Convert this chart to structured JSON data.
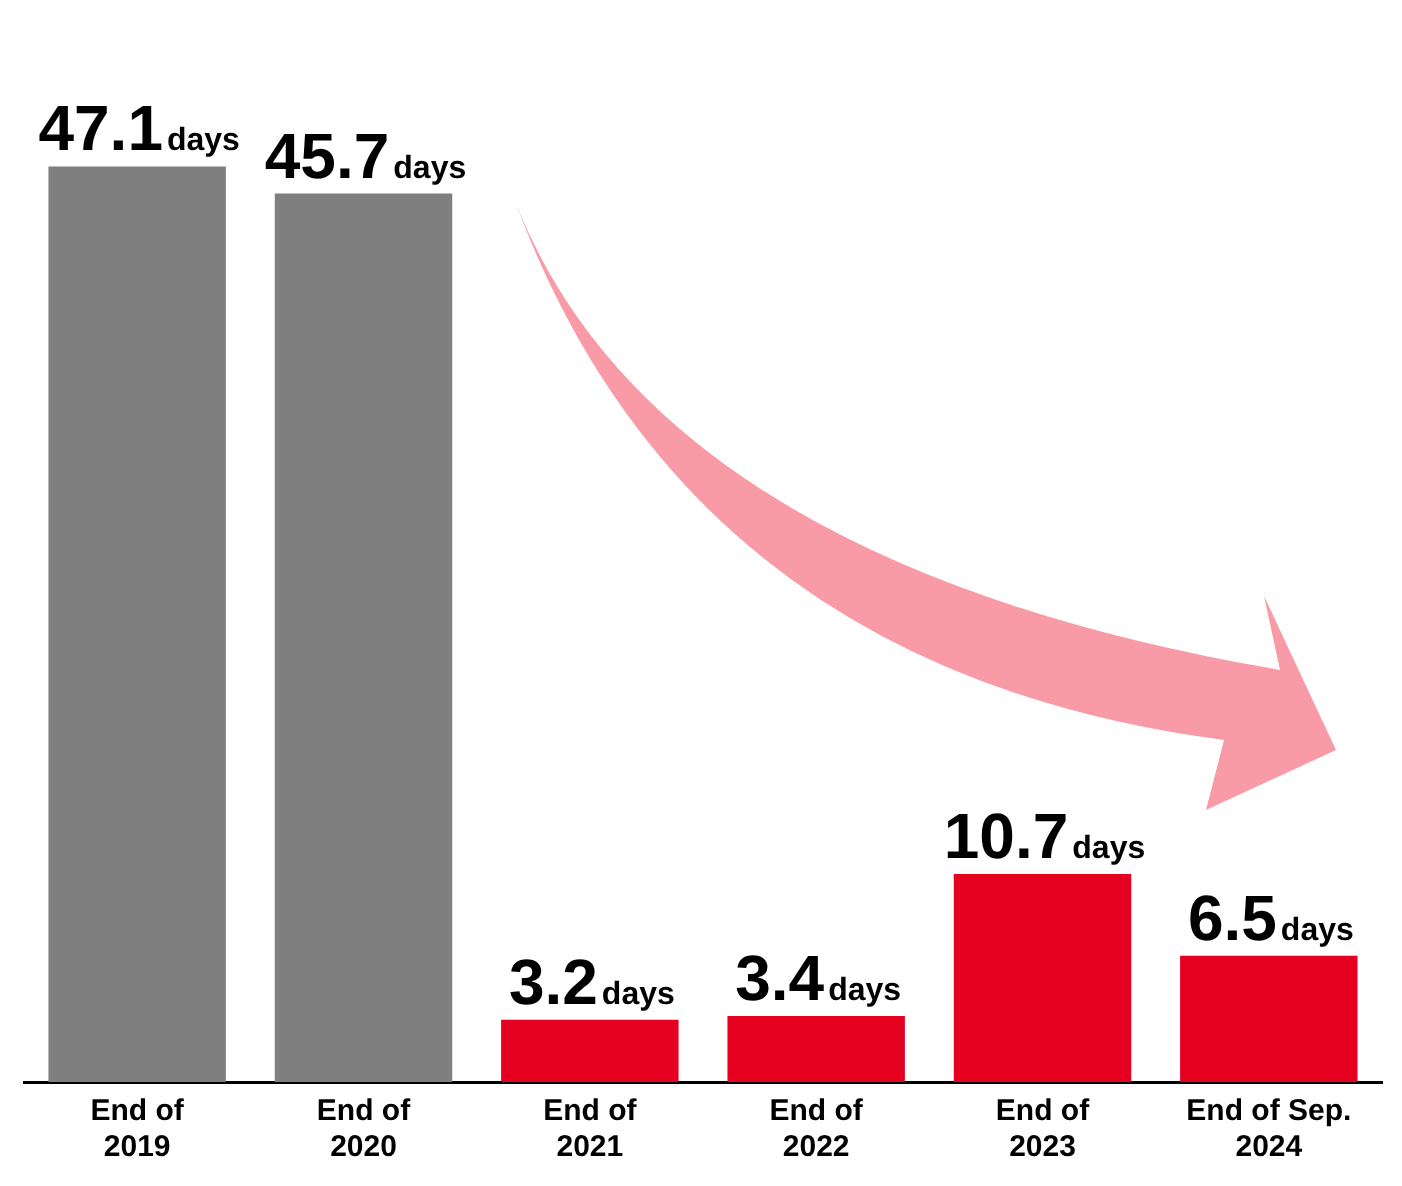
{
  "chart_data": {
    "type": "bar",
    "categories": [
      "End of 2019",
      "End of 2020",
      "End of 2021",
      "End of 2022",
      "End of 2023",
      "End of Sep. 2024"
    ],
    "values": [
      47.1,
      45.7,
      3.2,
      3.4,
      10.7,
      6.5
    ],
    "colors": [
      "#7f7f7f",
      "#7f7f7f",
      "#e60020",
      "#e60020",
      "#e60020",
      "#e60020"
    ],
    "value_labels": [
      "47.1days",
      "45.7days",
      "3.2days",
      "3.4days",
      "10.7days",
      "6.5days"
    ],
    "grid": false,
    "legend": false
  }
}
